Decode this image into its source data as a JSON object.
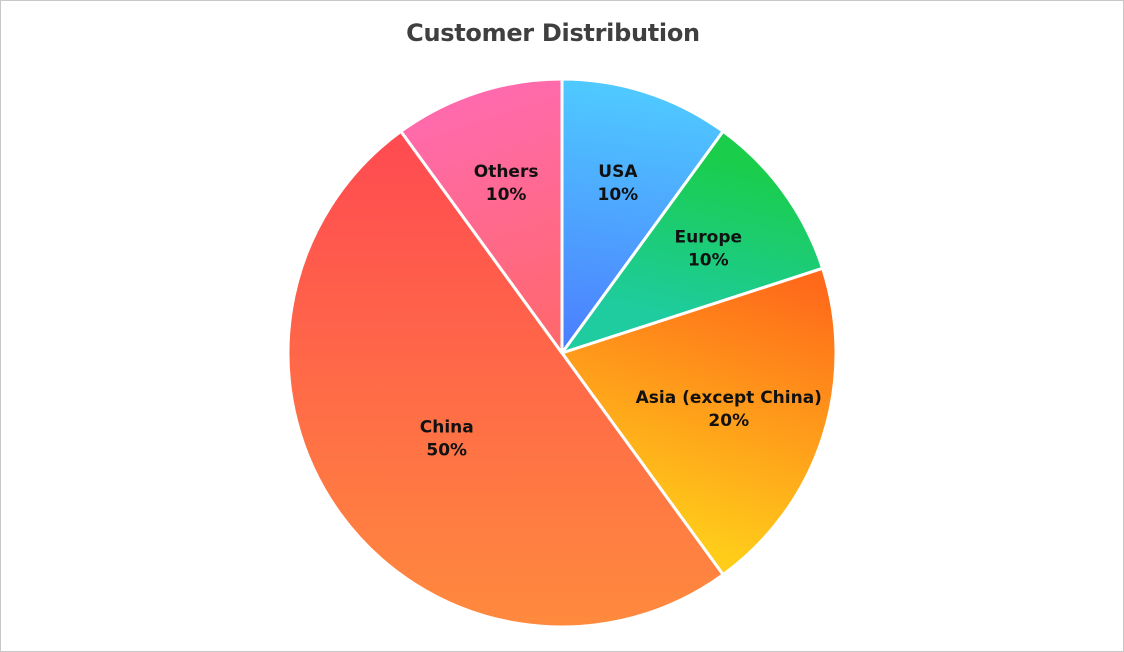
{
  "chart_data": {
    "type": "pie",
    "title": "Customer Distribution",
    "slices": [
      {
        "label": "USA",
        "value": 10,
        "display": "10%",
        "color_start": "#4FCBFF",
        "color_end": "#4C7DFF"
      },
      {
        "label": "Europe",
        "value": 10,
        "display": "10%",
        "color_start": "#1ACD4A",
        "color_end": "#1ECC9F"
      },
      {
        "label": "Asia (except China)",
        "value": 20,
        "display": "20%",
        "color_start": "#FF6A1A",
        "color_end": "#FFCC1A"
      },
      {
        "label": "China",
        "value": 50,
        "display": "50%",
        "color_start": "#FF4354",
        "color_end": "#FF8A3D"
      },
      {
        "label": "Others",
        "value": 10,
        "display": "10%",
        "color_start": "#FF6AAE",
        "color_end": "#FF6868"
      }
    ],
    "legend": "none"
  }
}
